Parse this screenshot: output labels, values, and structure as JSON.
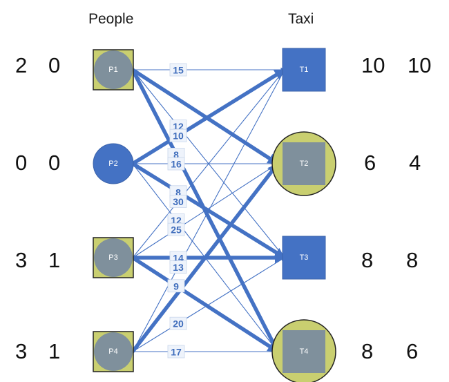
{
  "headers": {
    "left": "People",
    "right": "Taxi"
  },
  "colors": {
    "blue": "#4472c4",
    "gray": "#7f909c",
    "yellow": "#c9cf70",
    "edge": "#4472c4",
    "label_text": "#3f6dbc",
    "label_box": "#eef3fb"
  },
  "people": [
    {
      "id": "P1",
      "label": "P1",
      "values": [
        "2",
        "0"
      ],
      "shape": "gray-circle-in-yellow-square"
    },
    {
      "id": "P2",
      "label": "P2",
      "values": [
        "0",
        "0"
      ],
      "shape": "blue-circle"
    },
    {
      "id": "P3",
      "label": "P3",
      "values": [
        "3",
        "1"
      ],
      "shape": "gray-circle-in-yellow-square"
    },
    {
      "id": "P4",
      "label": "P4",
      "values": [
        "3",
        "1"
      ],
      "shape": "gray-circle-in-yellow-square"
    }
  ],
  "taxis": [
    {
      "id": "T1",
      "label": "T1",
      "values": [
        "10",
        "10"
      ],
      "shape": "blue-square"
    },
    {
      "id": "T2",
      "label": "T2",
      "values": [
        "6",
        "4"
      ],
      "shape": "gray-square-in-yellow-circle"
    },
    {
      "id": "T3",
      "label": "T3",
      "values": [
        "8",
        "8"
      ],
      "shape": "blue-square"
    },
    {
      "id": "T4",
      "label": "T4",
      "values": [
        "8",
        "6"
      ],
      "shape": "gray-square-in-yellow-circle"
    }
  ],
  "edges": [
    {
      "from": "P1",
      "to": "T1",
      "weight": "15",
      "thick": false
    },
    {
      "from": "P1",
      "to": "T2",
      "weight": "",
      "thick": true
    },
    {
      "from": "P1",
      "to": "T3",
      "weight": "12",
      "thick": false
    },
    {
      "from": "P1",
      "to": "T4",
      "weight": "8",
      "thick": true
    },
    {
      "from": "P2",
      "to": "T1",
      "weight": "10",
      "thick": true
    },
    {
      "from": "P2",
      "to": "T2",
      "weight": "16",
      "thick": false
    },
    {
      "from": "P2",
      "to": "T3",
      "weight": "8",
      "thick": true
    },
    {
      "from": "P2",
      "to": "T4",
      "weight": "12",
      "thick": false
    },
    {
      "from": "P3",
      "to": "T1",
      "weight": "30",
      "thick": false
    },
    {
      "from": "P3",
      "to": "T2",
      "weight": "25",
      "thick": false
    },
    {
      "from": "P3",
      "to": "T3",
      "weight": "14",
      "thick": true
    },
    {
      "from": "P3",
      "to": "T4",
      "weight": "9",
      "thick": true
    },
    {
      "from": "P4",
      "to": "T1",
      "weight": "13",
      "thick": false
    },
    {
      "from": "P4",
      "to": "T2",
      "weight": "",
      "thick": true
    },
    {
      "from": "P4",
      "to": "T3",
      "weight": "20",
      "thick": false
    },
    {
      "from": "P4",
      "to": "T4",
      "weight": "17",
      "thick": false
    }
  ]
}
